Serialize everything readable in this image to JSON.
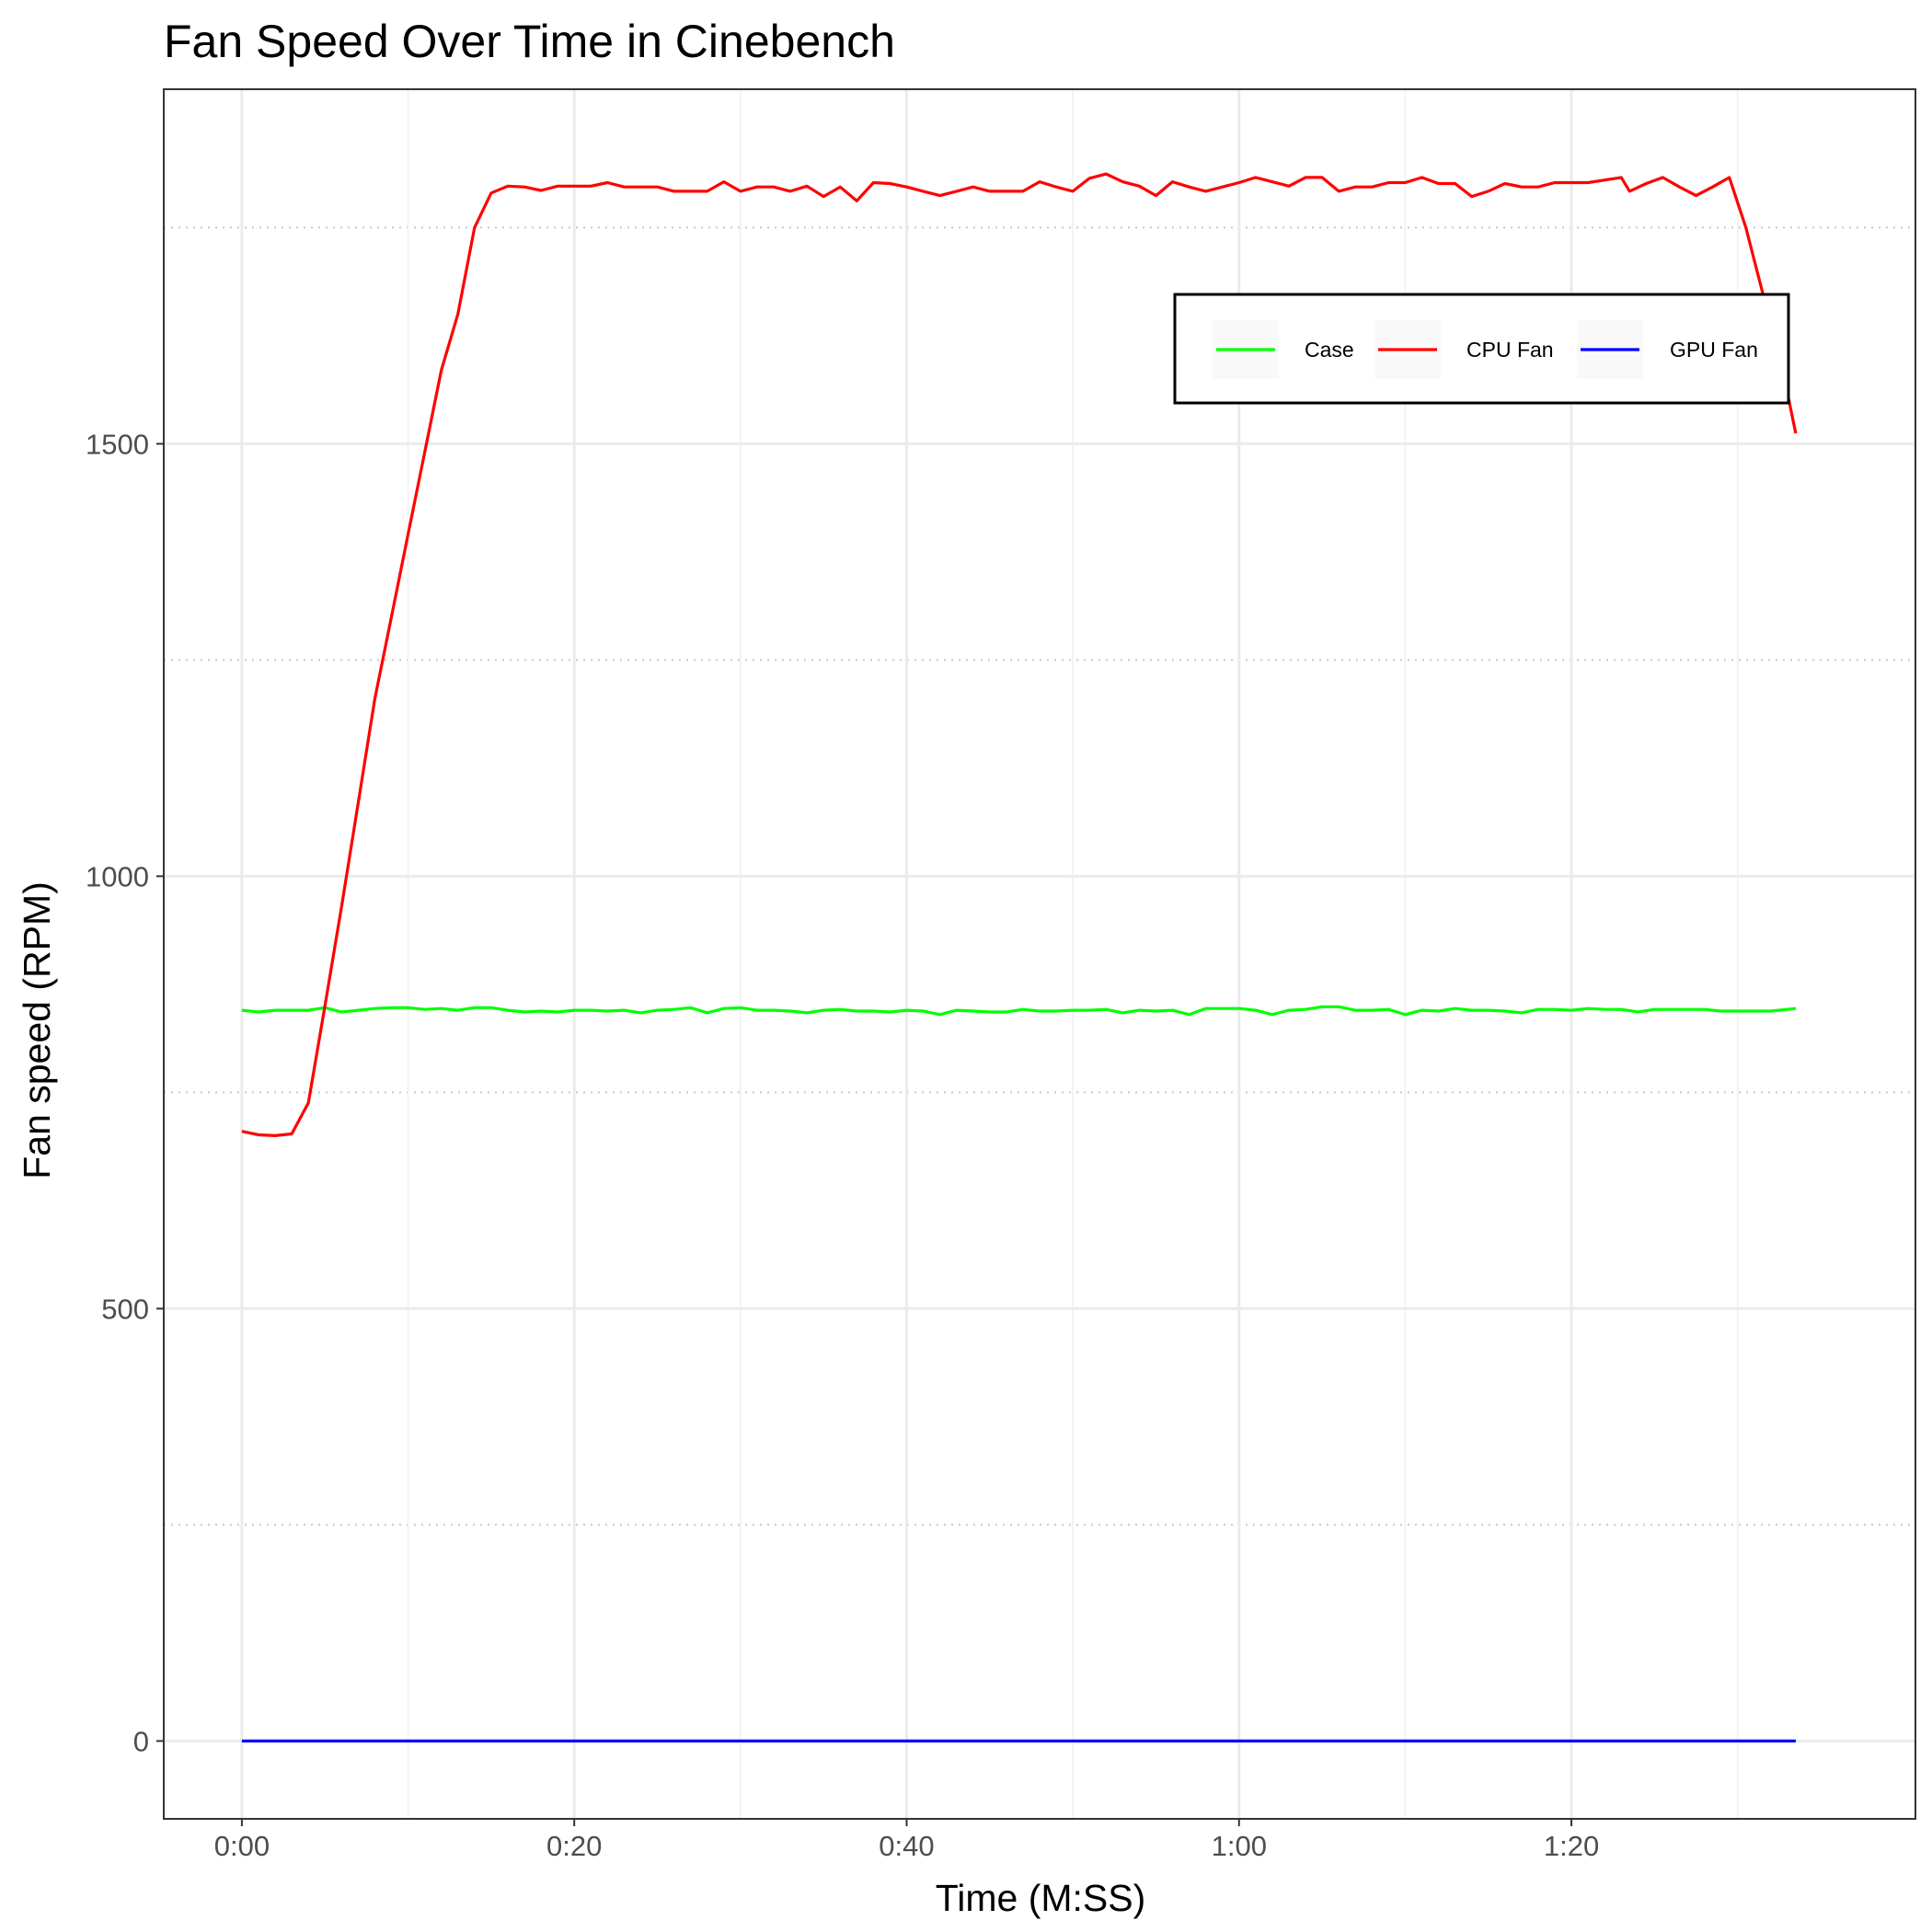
{
  "chart_data": {
    "type": "line",
    "title": "Fan Speed Over Time in Cinebench",
    "xlabel": "Time (M:SS)",
    "ylabel": "Fan speed (RPM)",
    "xlim": [
      -4.7,
      100.7
    ],
    "ylim": [
      -90,
      1910
    ],
    "x_ticks": [
      0,
      20,
      40,
      60,
      80
    ],
    "x_tick_labels": [
      "0:00",
      "0:20",
      "0:40",
      "1:00",
      "1:20"
    ],
    "y_ticks": [
      0,
      500,
      1000,
      1500
    ],
    "y_tick_labels": [
      "0",
      "500",
      "1000",
      "1500"
    ],
    "grid": true,
    "legend": {
      "position": "top-right",
      "direction": "horizontal"
    },
    "series": [
      {
        "name": "Case",
        "color": "#00ff00",
        "x": [
          0,
          1,
          2,
          3,
          4,
          5,
          6,
          7,
          8,
          9,
          10,
          11,
          12,
          13,
          14,
          15,
          16,
          17,
          18,
          19,
          20,
          21,
          22,
          23,
          24,
          25,
          26,
          27,
          28,
          29,
          30,
          31,
          32,
          33,
          34,
          35,
          36,
          37,
          38,
          39,
          40,
          41,
          42,
          43,
          44,
          45,
          46,
          47,
          48,
          49,
          50,
          51,
          52,
          53,
          54,
          55,
          56,
          57,
          58,
          59,
          60,
          61,
          62,
          63,
          64,
          65,
          66,
          67,
          68,
          69,
          70,
          71,
          72,
          73,
          74,
          75,
          76,
          77,
          78,
          79,
          80,
          81,
          82,
          83,
          84,
          85,
          86,
          87,
          88,
          89,
          90,
          91,
          92,
          93.5
        ],
        "values": [
          845,
          843,
          845,
          845,
          845,
          848,
          843,
          845,
          847,
          848,
          848,
          846,
          847,
          845,
          848,
          848,
          845,
          843,
          844,
          843,
          845,
          845,
          844,
          845,
          842,
          845,
          846,
          848,
          842,
          847,
          848,
          845,
          845,
          844,
          842,
          845,
          846,
          844,
          844,
          843,
          845,
          844,
          840,
          845,
          844,
          843,
          843,
          846,
          844,
          844,
          845,
          845,
          846,
          842,
          845,
          844,
          845,
          840,
          847,
          847,
          847,
          845,
          840,
          845,
          846,
          849,
          849,
          845,
          845,
          846,
          840,
          845,
          844,
          847,
          845,
          845,
          844,
          842,
          846,
          846,
          845,
          847,
          846,
          846,
          843,
          846,
          846,
          846,
          846,
          844,
          844,
          844,
          844,
          847
        ]
      },
      {
        "name": "CPU Fan",
        "color": "#ff0000",
        "x": [
          0,
          1,
          2,
          3,
          4,
          5,
          6,
          7,
          8,
          9,
          10,
          11,
          12,
          13,
          14,
          15,
          16,
          17,
          18,
          19,
          20,
          21,
          22,
          23,
          24,
          25,
          26,
          27,
          28,
          29,
          30,
          31,
          32,
          33,
          34,
          35,
          36,
          37,
          38,
          39,
          40,
          41,
          42,
          43,
          44,
          45,
          46,
          47,
          48,
          49,
          50,
          51,
          52,
          53,
          54,
          55,
          56,
          57,
          58,
          59,
          60,
          61,
          62,
          63,
          64,
          65,
          66,
          67,
          68,
          69,
          70,
          71,
          72,
          73,
          74,
          75,
          76,
          77,
          78,
          79,
          80,
          81,
          82,
          83,
          83.5,
          84.5,
          85.5,
          86.5,
          87.5,
          88.5,
          89.5,
          90.5,
          91.5,
          92.5,
          93.5
        ],
        "values": [
          705,
          701,
          700,
          702,
          738,
          850,
          965,
          1085,
          1205,
          1300,
          1395,
          1490,
          1585,
          1650,
          1750,
          1790,
          1798,
          1797,
          1793,
          1798,
          1798,
          1798,
          1802,
          1797,
          1797,
          1797,
          1792,
          1792,
          1792,
          1803,
          1792,
          1797,
          1797,
          1792,
          1798,
          1786,
          1797,
          1781,
          1802,
          1801,
          1797,
          1792,
          1787,
          1792,
          1797,
          1792,
          1792,
          1792,
          1803,
          1797,
          1792,
          1807,
          1812,
          1803,
          1798,
          1787,
          1803,
          1797,
          1792,
          1797,
          1802,
          1808,
          1803,
          1798,
          1808,
          1808,
          1792,
          1797,
          1797,
          1802,
          1802,
          1808,
          1801,
          1801,
          1786,
          1792,
          1801,
          1797,
          1797,
          1802,
          1802,
          1802,
          1805,
          1808,
          1792,
          1801,
          1808,
          1797,
          1787,
          1797,
          1808,
          1750,
          1675,
          1605,
          1512
        ]
      },
      {
        "name": "GPU Fan",
        "color": "#0000ff",
        "x": [
          0,
          93.5
        ],
        "values": [
          0,
          0
        ]
      }
    ]
  }
}
